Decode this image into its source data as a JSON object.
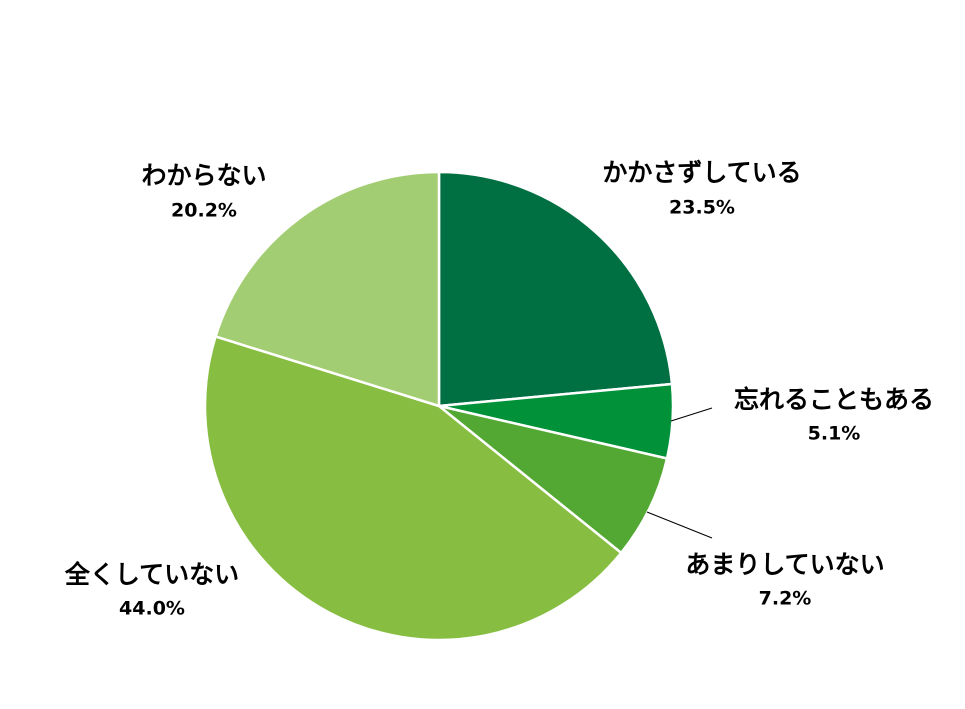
{
  "chart_data": {
    "type": "pie",
    "title": "",
    "unit": "%",
    "slices": [
      {
        "label": "かかさずしている",
        "value": 23.5,
        "value_label": "23.5%",
        "color": "#006F42"
      },
      {
        "label": "忘れることもある",
        "value": 5.1,
        "value_label": "5.1%",
        "color": "#009139"
      },
      {
        "label": "あまりしていない",
        "value": 7.2,
        "value_label": "7.2%",
        "color": "#52A833"
      },
      {
        "label": "全くしていない",
        "value": 44.0,
        "value_label": "44.0%",
        "color": "#87BE42"
      },
      {
        "label": "わからない",
        "value": 20.2,
        "value_label": "20.2%",
        "color": "#A3CD72"
      }
    ],
    "start_angle": "12 o'clock",
    "direction": "clockwise",
    "slice_border_color": "#ffffff",
    "label_color": "#000000"
  }
}
